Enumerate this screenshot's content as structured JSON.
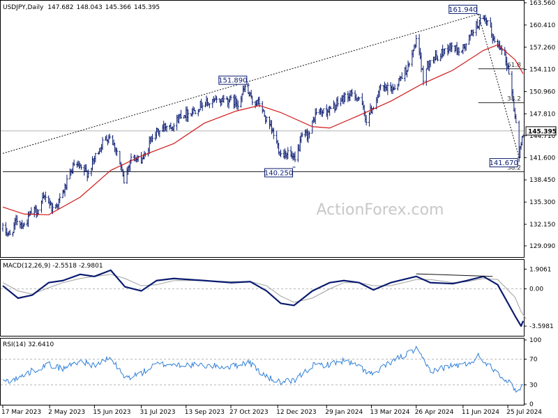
{
  "chart_data": {
    "type": "ohlc",
    "header": {
      "symbol": "USDJPY",
      "timeframe": "Daily",
      "open": "147.682",
      "high": "148.043",
      "low": "145.366",
      "close": "145.395"
    },
    "watermark": "ActionForex.com",
    "price_axis": {
      "ylim": [
        127.8,
        163.56
      ],
      "ticks": [
        "163.560",
        "160.410",
        "157.260",
        "154.110",
        "150.960",
        "147.810",
        "144.710",
        "141.600",
        "138.450",
        "135.300",
        "132.150",
        "129.090"
      ],
      "current": "145.395"
    },
    "x_axis": {
      "start": "2023-03-17",
      "end": "2024-08-09",
      "tick_labels": [
        "17 Mar 2023",
        "2 May 2023",
        "15 Jun 2023",
        "31 Jul 2023",
        "13 Sep 2023",
        "27 Oct 2023",
        "12 Dec 2023",
        "29 Jan 2024",
        "13 Mar 2024",
        "26 Apr 2024",
        "11 Jun 2024",
        "25 Jul 2024"
      ],
      "tick_dates": [
        "2023-03-17",
        "2023-05-02",
        "2023-06-15",
        "2023-07-31",
        "2023-09-13",
        "2023-10-27",
        "2023-12-12",
        "2024-01-29",
        "2024-03-13",
        "2024-04-26",
        "2024-06-11",
        "2024-07-25"
      ]
    },
    "price_path": [
      [
        "2023-03-17",
        131.5
      ],
      [
        "2023-03-24",
        130.6
      ],
      [
        "2023-03-31",
        132.8
      ],
      [
        "2023-04-07",
        132.0
      ],
      [
        "2023-04-14",
        133.8
      ],
      [
        "2023-04-21",
        134.2
      ],
      [
        "2023-04-28",
        136.3
      ],
      [
        "2023-05-05",
        134.3
      ],
      [
        "2023-05-12",
        135.6
      ],
      [
        "2023-05-19",
        138.0
      ],
      [
        "2023-05-26",
        140.6
      ],
      [
        "2023-06-02",
        139.9
      ],
      [
        "2023-06-09",
        139.4
      ],
      [
        "2023-06-16",
        141.8
      ],
      [
        "2023-06-23",
        143.7
      ],
      [
        "2023-06-30",
        144.8
      ],
      [
        "2023-07-07",
        142.5
      ],
      [
        "2023-07-14",
        138.2
      ],
      [
        "2023-07-21",
        141.8
      ],
      [
        "2023-07-28",
        141.2
      ],
      [
        "2023-08-04",
        141.8
      ],
      [
        "2023-08-11",
        144.9
      ],
      [
        "2023-08-18",
        145.4
      ],
      [
        "2023-08-25",
        146.3
      ],
      [
        "2023-09-01",
        146.2
      ],
      [
        "2023-09-08",
        147.8
      ],
      [
        "2023-09-15",
        147.9
      ],
      [
        "2023-09-22",
        148.4
      ],
      [
        "2023-09-29",
        149.3
      ],
      [
        "2023-10-06",
        149.3
      ],
      [
        "2023-10-13",
        149.6
      ],
      [
        "2023-10-20",
        149.9
      ],
      [
        "2023-10-27",
        149.7
      ],
      [
        "2023-11-03",
        149.4
      ],
      [
        "2023-11-10",
        151.5
      ],
      [
        "2023-11-17",
        149.6
      ],
      [
        "2023-11-24",
        149.4
      ],
      [
        "2023-12-01",
        146.8
      ],
      [
        "2023-12-08",
        144.9
      ],
      [
        "2023-12-15",
        142.1
      ],
      [
        "2023-12-22",
        142.4
      ],
      [
        "2023-12-29",
        141.0
      ],
      [
        "2024-01-05",
        144.6
      ],
      [
        "2024-01-12",
        145.0
      ],
      [
        "2024-01-19",
        148.1
      ],
      [
        "2024-01-26",
        148.1
      ],
      [
        "2024-02-02",
        148.4
      ],
      [
        "2024-02-09",
        149.3
      ],
      [
        "2024-02-16",
        150.2
      ],
      [
        "2024-02-23",
        150.5
      ],
      [
        "2024-03-01",
        150.1
      ],
      [
        "2024-03-08",
        147.0
      ],
      [
        "2024-03-15",
        149.0
      ],
      [
        "2024-03-22",
        151.4
      ],
      [
        "2024-03-29",
        151.3
      ],
      [
        "2024-04-05",
        151.6
      ],
      [
        "2024-04-12",
        153.3
      ],
      [
        "2024-04-19",
        154.6
      ],
      [
        "2024-04-26",
        158.3
      ],
      [
        "2024-05-03",
        153.0
      ],
      [
        "2024-05-10",
        155.8
      ],
      [
        "2024-05-17",
        155.6
      ],
      [
        "2024-05-24",
        157.0
      ],
      [
        "2024-05-31",
        157.3
      ],
      [
        "2024-06-07",
        156.8
      ],
      [
        "2024-06-14",
        157.4
      ],
      [
        "2024-06-21",
        159.8
      ],
      [
        "2024-06-28",
        160.9
      ],
      [
        "2024-07-05",
        160.8
      ],
      [
        "2024-07-12",
        157.9
      ],
      [
        "2024-07-19",
        157.4
      ],
      [
        "2024-07-26",
        153.8
      ],
      [
        "2024-08-02",
        146.5
      ],
      [
        "2024-08-05",
        141.7
      ],
      [
        "2024-08-09",
        145.4
      ]
    ],
    "moving_average": [
      [
        "2023-03-17",
        134.6
      ],
      [
        "2023-04-07",
        133.6
      ],
      [
        "2023-05-01",
        133.5
      ],
      [
        "2023-06-01",
        136.0
      ],
      [
        "2023-07-01",
        139.8
      ],
      [
        "2023-08-01",
        141.9
      ],
      [
        "2023-09-01",
        143.6
      ],
      [
        "2023-10-01",
        146.5
      ],
      [
        "2023-11-01",
        148.2
      ],
      [
        "2023-11-24",
        149.0
      ],
      [
        "2023-12-15",
        148.0
      ],
      [
        "2024-01-15",
        146.0
      ],
      [
        "2024-02-01",
        145.8
      ],
      [
        "2024-03-01",
        147.6
      ],
      [
        "2024-04-01",
        149.6
      ],
      [
        "2024-05-01",
        152.0
      ],
      [
        "2024-06-01",
        154.0
      ],
      [
        "2024-07-01",
        156.8
      ],
      [
        "2024-07-15",
        157.6
      ],
      [
        "2024-08-01",
        155.5
      ],
      [
        "2024-08-09",
        153.5
      ]
    ],
    "trendline": {
      "from": [
        "2023-03-17",
        142.2
      ],
      "to": [
        "2024-06-26",
        161.95
      ]
    },
    "annotations": [
      {
        "label": "151.890",
        "date": "2023-11-13",
        "price": 151.89,
        "side": "above"
      },
      {
        "label": "140.250",
        "date": "2023-12-28",
        "price": 140.25,
        "side": "below"
      },
      {
        "label": "161.940",
        "date": "2024-06-26",
        "price": 161.94,
        "side": "above"
      },
      {
        "label": "141.670",
        "date": "2024-08-05",
        "price": 141.67,
        "side": "below"
      }
    ],
    "drop_line": {
      "from": [
        "2024-06-26",
        161.94
      ],
      "to": [
        "2024-08-05",
        141.67
      ]
    },
    "levels": [
      {
        "label": "61.8",
        "price": 154.2,
        "from": "2024-06-26",
        "to": "2024-08-16"
      },
      {
        "label": "38.2",
        "price": 149.4,
        "from": "2024-06-26",
        "to": "2024-08-16"
      },
      {
        "label": "38.2",
        "price": 139.6,
        "from": "2023-03-17",
        "to": "2024-08-16"
      }
    ],
    "macd": {
      "title": "MACD(12,26,9) -2.5518 -2.9801",
      "ylim": [
        -4.4,
        2.6
      ],
      "ticks": [
        "1.9061",
        "0.00",
        "-3.5981"
      ],
      "tick_values": [
        1.9061,
        0.0,
        -3.5981
      ],
      "main": [
        [
          "2023-03-17",
          0.3
        ],
        [
          "2023-04-01",
          -0.9
        ],
        [
          "2023-04-15",
          -0.6
        ],
        [
          "2023-05-01",
          0.6
        ],
        [
          "2023-05-15",
          0.8
        ],
        [
          "2023-06-01",
          1.4
        ],
        [
          "2023-06-15",
          1.2
        ],
        [
          "2023-07-01",
          1.8
        ],
        [
          "2023-07-15",
          0.2
        ],
        [
          "2023-07-31",
          -0.2
        ],
        [
          "2023-08-15",
          0.8
        ],
        [
          "2023-09-01",
          1.0
        ],
        [
          "2023-10-01",
          0.8
        ],
        [
          "2023-10-27",
          0.6
        ],
        [
          "2023-11-15",
          0.7
        ],
        [
          "2023-12-01",
          -0.2
        ],
        [
          "2023-12-15",
          -1.4
        ],
        [
          "2023-12-28",
          -1.6
        ],
        [
          "2024-01-15",
          -0.2
        ],
        [
          "2024-02-01",
          0.6
        ],
        [
          "2024-02-15",
          0.8
        ],
        [
          "2024-03-01",
          0.6
        ],
        [
          "2024-03-15",
          -0.1
        ],
        [
          "2024-04-01",
          0.6
        ],
        [
          "2024-04-26",
          1.2
        ],
        [
          "2024-05-10",
          0.6
        ],
        [
          "2024-06-01",
          0.5
        ],
        [
          "2024-06-15",
          0.8
        ],
        [
          "2024-07-01",
          1.2
        ],
        [
          "2024-07-15",
          0.4
        ],
        [
          "2024-08-01",
          -2.6
        ],
        [
          "2024-08-07",
          -3.6
        ],
        [
          "2024-08-12",
          -3.1
        ]
      ],
      "signal": [
        [
          "2023-03-17",
          0.6
        ],
        [
          "2023-04-01",
          -0.2
        ],
        [
          "2023-04-15",
          -0.5
        ],
        [
          "2023-05-01",
          0.1
        ],
        [
          "2023-05-15",
          0.6
        ],
        [
          "2023-06-01",
          1.0
        ],
        [
          "2023-06-15",
          1.2
        ],
        [
          "2023-07-01",
          1.4
        ],
        [
          "2023-07-15",
          1.0
        ],
        [
          "2023-07-31",
          0.3
        ],
        [
          "2023-08-15",
          0.4
        ],
        [
          "2023-09-01",
          0.8
        ],
        [
          "2023-10-01",
          0.8
        ],
        [
          "2023-10-27",
          0.7
        ],
        [
          "2023-11-15",
          0.7
        ],
        [
          "2023-12-01",
          0.3
        ],
        [
          "2023-12-15",
          -0.7
        ],
        [
          "2023-12-28",
          -1.3
        ],
        [
          "2024-01-15",
          -0.9
        ],
        [
          "2024-02-01",
          0.0
        ],
        [
          "2024-02-15",
          0.6
        ],
        [
          "2024-03-01",
          0.6
        ],
        [
          "2024-03-15",
          0.3
        ],
        [
          "2024-04-01",
          0.3
        ],
        [
          "2024-04-26",
          0.9
        ],
        [
          "2024-05-10",
          0.9
        ],
        [
          "2024-06-01",
          0.6
        ],
        [
          "2024-06-15",
          0.7
        ],
        [
          "2024-07-01",
          1.0
        ],
        [
          "2024-07-15",
          0.9
        ],
        [
          "2024-08-01",
          -0.8
        ],
        [
          "2024-08-07",
          -2.2
        ],
        [
          "2024-08-12",
          -2.9
        ]
      ],
      "divergence_line": {
        "from": [
          "2024-04-26",
          1.45
        ],
        "to": [
          "2024-07-10",
          1.2
        ]
      }
    },
    "rsi": {
      "title": "RSI(14) 32.6410",
      "ylim": [
        0,
        100
      ],
      "ticks": [
        "100",
        "70",
        "30",
        "0"
      ],
      "tick_values": [
        100,
        70,
        30,
        0
      ],
      "path": [
        [
          "2023-03-17",
          35
        ],
        [
          "2023-04-01",
          40
        ],
        [
          "2023-04-15",
          52
        ],
        [
          "2023-05-01",
          62
        ],
        [
          "2023-05-15",
          55
        ],
        [
          "2023-06-01",
          68
        ],
        [
          "2023-06-15",
          60
        ],
        [
          "2023-07-01",
          72
        ],
        [
          "2023-07-15",
          40
        ],
        [
          "2023-07-31",
          48
        ],
        [
          "2023-08-15",
          62
        ],
        [
          "2023-09-01",
          62
        ],
        [
          "2023-10-01",
          60
        ],
        [
          "2023-10-27",
          58
        ],
        [
          "2023-11-13",
          66
        ],
        [
          "2023-12-01",
          42
        ],
        [
          "2023-12-15",
          34
        ],
        [
          "2023-12-28",
          36
        ],
        [
          "2024-01-15",
          60
        ],
        [
          "2024-02-01",
          62
        ],
        [
          "2024-02-15",
          68
        ],
        [
          "2024-03-01",
          58
        ],
        [
          "2024-03-15",
          45
        ],
        [
          "2024-04-01",
          66
        ],
        [
          "2024-04-26",
          85
        ],
        [
          "2024-05-10",
          52
        ],
        [
          "2024-06-01",
          60
        ],
        [
          "2024-06-15",
          62
        ],
        [
          "2024-06-26",
          75
        ],
        [
          "2024-07-15",
          50
        ],
        [
          "2024-08-01",
          24
        ],
        [
          "2024-08-05",
          20
        ],
        [
          "2024-08-09",
          32.6
        ]
      ]
    },
    "colors": {
      "bars": "#0a1b70",
      "moving_average": "#d01818",
      "macd_main": "#0a1b70",
      "macd_signal": "#a0a0a0",
      "rsi": "#2f7fd8",
      "grid": "#b5b5b5"
    }
  }
}
